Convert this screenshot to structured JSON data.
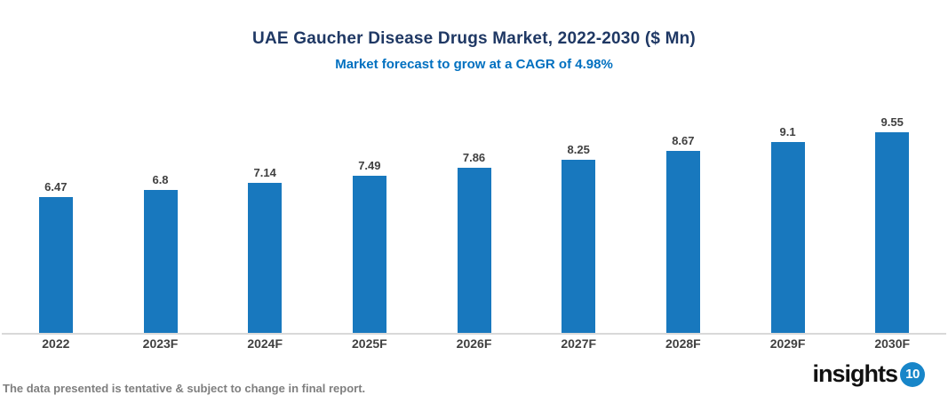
{
  "header": {
    "title": "UAE Gaucher Disease Drugs Market, 2022-2030 ($ Mn)",
    "subtitle": "Market forecast to grow at a CAGR of 4.98%",
    "title_color": "#1F3864",
    "subtitle_color": "#0070C0"
  },
  "chart_data": {
    "type": "bar",
    "title": "UAE Gaucher Disease Drugs Market, 2022-2030 ($ Mn)",
    "subtitle": "Market forecast to grow at a CAGR of 4.98%",
    "categories": [
      "2022",
      "2023F",
      "2024F",
      "2025F",
      "2026F",
      "2027F",
      "2028F",
      "2029F",
      "2030F"
    ],
    "values": [
      6.47,
      6.8,
      7.14,
      7.49,
      7.86,
      8.25,
      8.67,
      9.1,
      9.55
    ],
    "value_labels": [
      "6.47",
      "6.8",
      "7.14",
      "7.49",
      "7.86",
      "8.25",
      "8.67",
      "9.1",
      "9.55"
    ],
    "xlabel": "",
    "ylabel": "",
    "ylim": [
      0,
      9.55
    ],
    "grid": false,
    "legend": "none",
    "bar_color": "#1878BE",
    "value_label_color": "#404040",
    "x_label_color": "#404040",
    "axis_line_color": "#D9D9D9"
  },
  "footer": {
    "disclaimer": "The data presented is tentative & subject to change in final report.",
    "disclaimer_color": "#7F7F7F",
    "logo_text": "insights",
    "logo_badge": "10",
    "logo_badge_color": "#1886C9"
  }
}
